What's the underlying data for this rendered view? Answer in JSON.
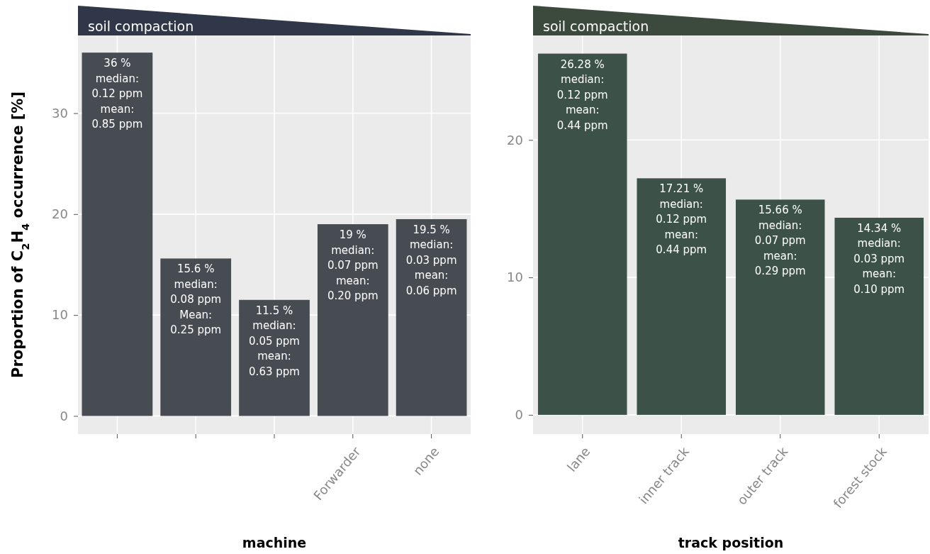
{
  "chart_data": [
    {
      "type": "bar",
      "title": "soil compaction",
      "xlabel": "machine",
      "ylabel": "Proportion of C$_{2}$H$_{4}$ occurrence [%]",
      "categories": [
        null,
        null,
        null,
        "Forwarder",
        "none"
      ],
      "values": [
        36,
        15.6,
        11.5,
        19,
        19.5
      ],
      "color": "#474b52",
      "value_labels": [
        "36 %\nmedian:\n0.12 ppm\nmean:\n0.85 ppm",
        "15.6 %\nmedian:\n0.08 ppm\nMean:\n0.25 ppm",
        "11.5 %\nmedian:\n0.05 ppm\nmean:\n0.63 ppm",
        "19 %\nmedian:\n0.07 ppm\nmean:\n0.20 ppm",
        "19.5 %\nmedian:\n0.03 ppm\nmean:\n0.06 ppm"
      ],
      "ylim": [
        -1.8,
        37.7
      ],
      "yticks": [
        0,
        10,
        20,
        30
      ],
      "grid": true
    },
    {
      "type": "bar",
      "title": "soil compaction",
      "xlabel": "track position",
      "categories": [
        "lane",
        "inner track",
        "outer track",
        "forest stock"
      ],
      "values": [
        26.28,
        17.21,
        15.66,
        14.34
      ],
      "color": "#3c5248",
      "value_labels": [
        "26.28 %\nmedian:\n0.12 ppm\nmean:\n0.44 ppm",
        "17.21 %\nmedian:\n0.12 ppm\nmean:\n0.44 ppm",
        "15.66 %\nmedian:\n0.07 ppm\nmean:\n0.29 ppm",
        "14.34 %\nmedian:\n0.03 ppm\nmean:\n0.10 ppm"
      ],
      "ylim": [
        -1.4,
        27.6
      ],
      "yticks": [
        0,
        10,
        20
      ],
      "grid": true
    }
  ]
}
